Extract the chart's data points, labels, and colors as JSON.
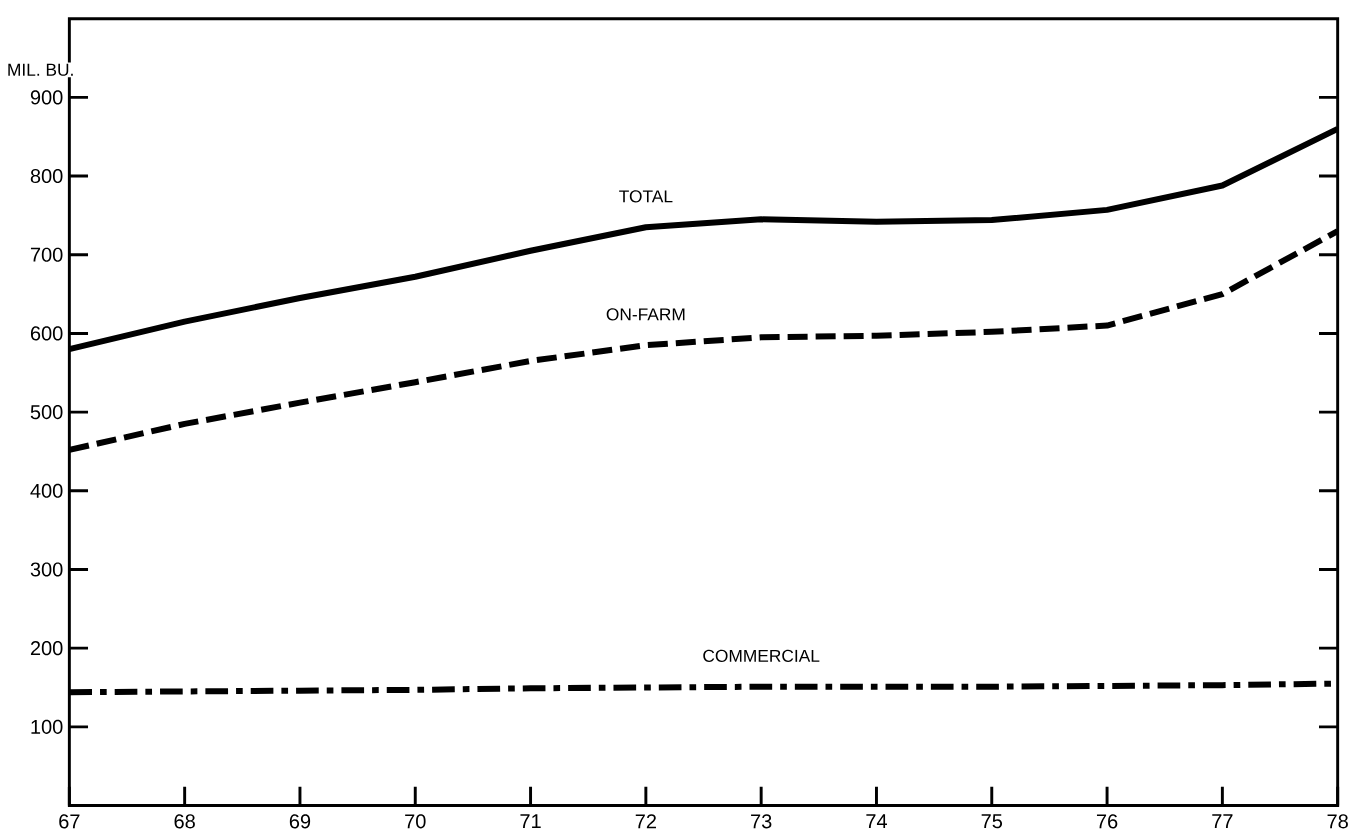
{
  "chart_data": {
    "type": "line",
    "ylabel": "MIL. BU.",
    "x": [
      67,
      68,
      69,
      70,
      71,
      72,
      73,
      74,
      75,
      76,
      77,
      78
    ],
    "xlim": [
      67,
      78
    ],
    "xticks": [
      67,
      68,
      69,
      70,
      71,
      72,
      73,
      74,
      75,
      76,
      77,
      78
    ],
    "ylim": [
      0,
      1000
    ],
    "yticks": [
      {
        "value": 0,
        "label": null
      },
      100,
      200,
      300,
      400,
      500,
      600,
      700,
      800,
      900
    ],
    "marker": "none",
    "grid": false,
    "series": [
      {
        "name": "TOTAL",
        "color": "#000000",
        "line_style": "solid",
        "values": [
          580,
          615,
          645,
          672,
          705,
          735,
          745,
          742,
          744,
          757,
          788,
          860
        ]
      },
      {
        "name": "ON-FARM",
        "color": "#000000",
        "line_style": "dashed",
        "values": [
          452,
          485,
          512,
          538,
          565,
          585,
          595,
          597,
          602,
          610,
          650,
          730
        ]
      },
      {
        "name": "COMMERCIAL",
        "color": "#000000",
        "line_style": "dashdot",
        "values": [
          144,
          145,
          146,
          147,
          149,
          150,
          151,
          151,
          151,
          152,
          153,
          155
        ]
      }
    ]
  }
}
